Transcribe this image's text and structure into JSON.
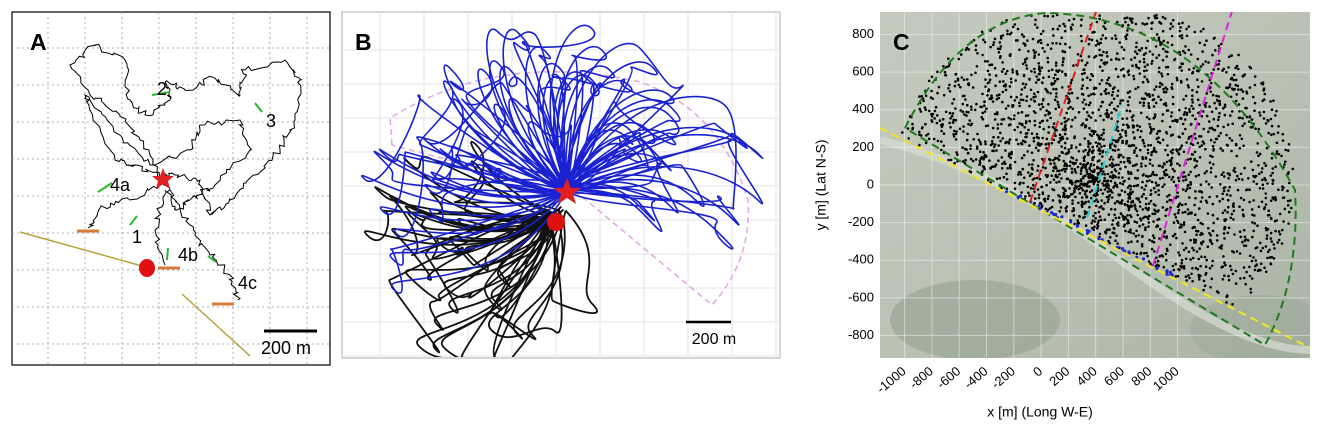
{
  "panels": [
    {
      "label": "A",
      "annotations": [
        "2",
        "3",
        "4a",
        "1",
        "4b",
        "4c"
      ],
      "scale_bar": "200 m"
    },
    {
      "label": "B",
      "scale_bar": "200 m"
    },
    {
      "label": "C",
      "x_label": "x [m] (Long W-E)",
      "y_label": "y [m] (Lat N-S)",
      "xlim": [
        -1180,
        1970
      ],
      "ylim": [
        -920,
        920
      ],
      "xticks": [
        -1000,
        -800,
        -600,
        -400,
        -200,
        0,
        200,
        400,
        600,
        800,
        1000
      ],
      "yticks": [
        -800,
        -600,
        -400,
        -200,
        0,
        200,
        400,
        600,
        800
      ]
    }
  ]
}
